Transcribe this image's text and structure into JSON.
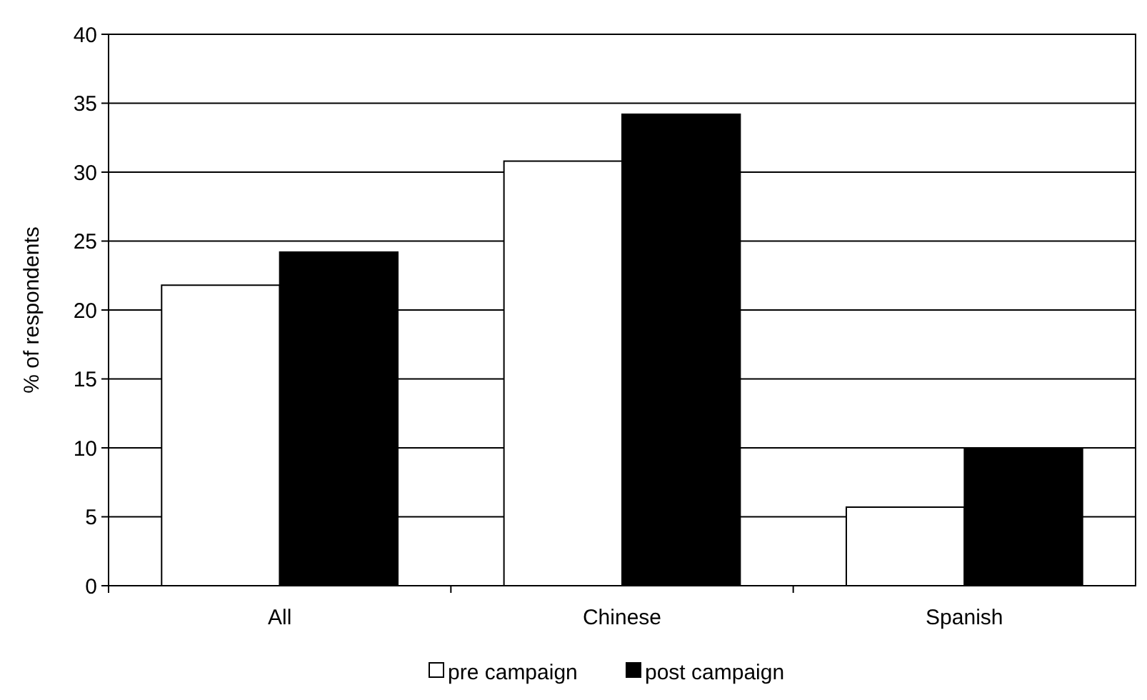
{
  "chart_data": {
    "type": "bar",
    "ylabel": "% of respondents",
    "categories": [
      "All",
      "Chinese",
      "Spanish"
    ],
    "series": [
      {
        "name": "pre campaign",
        "color": "#ffffff",
        "values": [
          21.8,
          30.8,
          5.7
        ]
      },
      {
        "name": "post campaign",
        "color": "#000000",
        "values": [
          24.2,
          34.2,
          9.9
        ]
      }
    ],
    "ylim": [
      0,
      40
    ],
    "yticks": [
      0,
      5,
      10,
      15,
      20,
      25,
      30,
      35,
      40
    ],
    "grid": "y",
    "legend": "bottom"
  }
}
